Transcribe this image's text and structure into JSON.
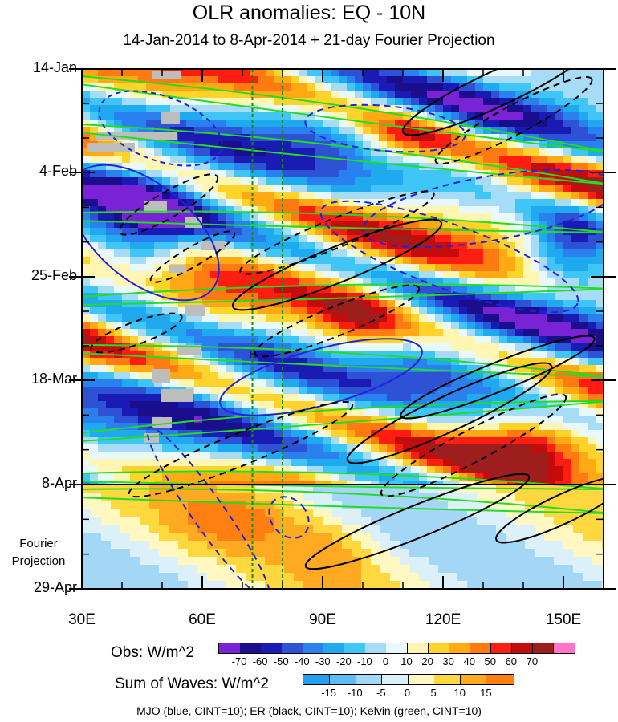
{
  "title": "OLR anomalies: EQ - 10N",
  "subtitle": "14-Jan-2014 to 8-Apr-2014 + 21-day Fourier Projection",
  "fourier_label": [
    "Fourier",
    "Projection"
  ],
  "legend_note": "MJO (blue, CINT=10); ER (black, CINT=10); Kelvin (green, CINT=10)",
  "chart_data": {
    "type": "heatmap",
    "x": {
      "label": "",
      "range": [
        30,
        160
      ],
      "unit": "degrees longitude",
      "tick_values": [
        30,
        60,
        90,
        120,
        150
      ],
      "tick_labels": [
        "30E",
        "60E",
        "90E",
        "120E",
        "150E"
      ]
    },
    "y": {
      "label": "",
      "range_days": [
        "14-Jan-2014",
        "29-Apr-2014"
      ],
      "tick_labels": [
        "14-Jan",
        "4-Feb",
        "25-Feb",
        "18-Mar",
        "8-Apr",
        "29-Apr"
      ],
      "direction": "time increases downward"
    },
    "observation_end": "8-Apr",
    "reference_longitudes_dashed_green": [
      72.5,
      80
    ],
    "obs_colorbar": {
      "title": "Obs: W/m^2",
      "levels": [
        -70,
        -60,
        -50,
        -40,
        -30,
        -20,
        -10,
        0,
        10,
        20,
        30,
        40,
        50,
        60,
        70
      ],
      "colors": [
        "#7a22d6",
        "#1b0e8c",
        "#1a1ab4",
        "#2d52d6",
        "#2a80ee",
        "#1faaf0",
        "#3fc6f6",
        "#a6dcf6",
        "#e8f8fb",
        "#fff6b4",
        "#ffd42a",
        "#ffa914",
        "#ff7b12",
        "#ff1c10",
        "#c40c0c",
        "#9e1e1e",
        "#ff74c8"
      ]
    },
    "waves_colorbar": {
      "title": "Sum of Waves: W/m^2",
      "levels": [
        -15,
        -10,
        -5,
        0,
        5,
        10,
        15
      ],
      "colors": [
        "#24a0f0",
        "#5cbcf4",
        "#a4d6f6",
        "#dcf0fa",
        "#fff8c0",
        "#ffd840",
        "#ffaa20",
        "#ff8010"
      ]
    },
    "contour_series": [
      {
        "name": "MJO",
        "color": "blue",
        "cint": 10
      },
      {
        "name": "ER",
        "color": "black",
        "cint": 10
      },
      {
        "name": "Kelvin",
        "color": "green",
        "cint": 10
      }
    ]
  }
}
